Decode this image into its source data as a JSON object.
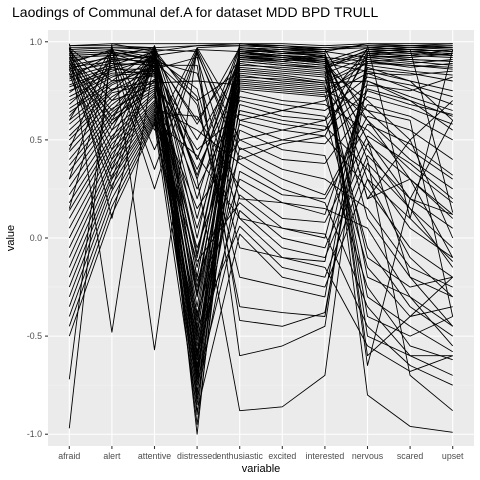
{
  "chart_data": {
    "type": "line",
    "title": "Laodings of Communal def.A for dataset MDD BPD TRULL",
    "xlabel": "variable",
    "ylabel": "value",
    "categories": [
      "afraid",
      "alert",
      "attentive",
      "distressed",
      "enthusiastic",
      "excited",
      "interested",
      "nervous",
      "scared",
      "upset"
    ],
    "ylim": [
      -1.06,
      1.06
    ],
    "yticks": [
      1.0,
      0.5,
      0.0,
      -0.5,
      -1.0
    ],
    "ytick_labels": [
      "1.0",
      "0.5",
      "0.0",
      "-0.5",
      "-1.0"
    ],
    "grid": true,
    "background": "#ebebeb",
    "line_color": "#000000",
    "series": [
      {
        "values": [
          0.99,
          0.1,
          0.98,
          -0.3,
          0.97,
          0.95,
          0.93,
          0.2,
          0.3,
          0.1
        ]
      },
      {
        "values": [
          -0.97,
          0.99,
          0.95,
          0.98,
          0.99,
          0.98,
          0.96,
          0.97,
          0.96,
          0.95
        ]
      },
      {
        "values": [
          0.98,
          0.98,
          -0.57,
          0.97,
          0.98,
          0.97,
          0.95,
          0.92,
          0.93,
          0.96
        ]
      },
      {
        "values": [
          -0.72,
          0.98,
          0.97,
          -1.0,
          0.99,
          0.97,
          0.96,
          0.98,
          0.97,
          0.98
        ]
      },
      {
        "values": [
          0.95,
          0.96,
          0.92,
          0.3,
          -0.88,
          -0.86,
          -0.7,
          0.94,
          0.95,
          0.93
        ]
      },
      {
        "values": [
          0.97,
          -0.48,
          0.93,
          0.96,
          0.95,
          0.93,
          0.92,
          -0.8,
          -0.96,
          -0.99
        ]
      },
      {
        "values": [
          0.96,
          0.97,
          0.96,
          0.95,
          -0.6,
          -0.55,
          -0.45,
          0.95,
          0.96,
          0.97
        ]
      },
      {
        "values": [
          0.94,
          0.95,
          0.9,
          -0.5,
          0.96,
          0.94,
          0.93,
          -0.5,
          -0.6,
          -0.6
        ]
      },
      {
        "values": [
          0.93,
          0.94,
          0.95,
          -0.7,
          0.97,
          0.96,
          0.94,
          0.4,
          -0.7,
          -0.88
        ]
      },
      {
        "values": [
          0.92,
          0.93,
          0.97,
          -0.4,
          0.95,
          0.93,
          0.9,
          0.97,
          0.96,
          0.13
        ]
      },
      {
        "values": [
          0.9,
          0.95,
          0.91,
          -0.6,
          0.94,
          0.92,
          0.91,
          0.5,
          0.2,
          0.12
        ]
      },
      {
        "values": [
          0.89,
          0.96,
          0.94,
          -0.2,
          0.93,
          0.92,
          0.89,
          0.95,
          0.94,
          0.93
        ]
      },
      {
        "values": [
          0.88,
          0.92,
          0.89,
          0.4,
          0.92,
          0.9,
          0.88,
          -0.2,
          -0.3,
          -0.55
        ]
      },
      {
        "values": [
          0.87,
          0.9,
          0.93,
          -0.8,
          0.96,
          0.95,
          0.92,
          0.9,
          0.91,
          0.9
        ]
      },
      {
        "values": [
          0.86,
          0.93,
          0.92,
          0.6,
          0.91,
          0.89,
          0.87,
          0.93,
          0.92,
          0.94
        ]
      },
      {
        "values": [
          0.85,
          0.89,
          0.88,
          -0.1,
          0.93,
          0.91,
          0.9,
          0.3,
          -0.1,
          -0.3
        ]
      },
      {
        "values": [
          0.83,
          0.91,
          0.9,
          -0.9,
          0.92,
          0.91,
          0.89,
          0.85,
          0.8,
          0.6
        ]
      },
      {
        "values": [
          0.82,
          0.88,
          0.95,
          0.2,
          0.9,
          0.88,
          0.86,
          0.96,
          0.95,
          0.96
        ]
      },
      {
        "values": [
          0.81,
          0.94,
          0.87,
          -0.45,
          0.94,
          0.93,
          0.91,
          0.1,
          -0.2,
          -0.45
        ]
      },
      {
        "values": [
          0.8,
          0.87,
          0.91,
          -0.65,
          0.89,
          0.86,
          0.84,
          0.92,
          0.9,
          0.88
        ]
      },
      {
        "values": [
          0.78,
          0.86,
          0.86,
          0.5,
          0.88,
          0.87,
          0.85,
          -0.4,
          -0.5,
          -0.4
        ]
      },
      {
        "values": [
          0.77,
          0.85,
          0.92,
          -0.75,
          0.95,
          0.92,
          0.9,
          0.88,
          0.85,
          0.83
        ]
      },
      {
        "values": [
          0.75,
          0.84,
          0.85,
          -0.35,
          0.87,
          0.85,
          0.83,
          0.6,
          0.4,
          0.25
        ]
      },
      {
        "values": [
          0.74,
          0.9,
          0.93,
          0.1,
          0.91,
          0.9,
          0.88,
          0.94,
          0.93,
          0.92
        ]
      },
      {
        "values": [
          0.72,
          0.83,
          0.84,
          -0.55,
          0.86,
          0.84,
          0.82,
          -0.1,
          -0.25,
          -0.2
        ]
      },
      {
        "values": [
          0.7,
          0.82,
          0.89,
          -0.85,
          0.9,
          0.88,
          0.87,
          0.7,
          0.5,
          0.0
        ]
      },
      {
        "values": [
          0.68,
          0.88,
          0.9,
          0.7,
          0.85,
          0.83,
          0.8,
          0.91,
          0.89,
          0.91
        ]
      },
      {
        "values": [
          0.66,
          0.8,
          0.83,
          -0.25,
          0.84,
          0.82,
          0.79,
          0.8,
          0.7,
          0.55
        ]
      },
      {
        "values": [
          0.64,
          0.79,
          0.87,
          -0.62,
          0.83,
          0.8,
          0.78,
          -0.3,
          -0.45,
          -0.58
        ]
      },
      {
        "values": [
          0.62,
          0.87,
          0.82,
          0.35,
          0.82,
          0.81,
          0.79,
          0.89,
          0.88,
          0.87
        ]
      },
      {
        "values": [
          0.6,
          0.78,
          0.88,
          -0.72,
          0.81,
          0.79,
          0.77,
          0.45,
          0.15,
          -0.15
        ]
      },
      {
        "values": [
          0.58,
          0.76,
          0.8,
          -0.15,
          0.8,
          0.78,
          0.76,
          0.86,
          0.84,
          0.8
        ]
      },
      {
        "values": [
          0.55,
          0.75,
          0.86,
          -0.95,
          0.79,
          0.77,
          0.75,
          0.65,
          0.45,
          0.3
        ]
      },
      {
        "values": [
          0.52,
          0.74,
          0.79,
          0.8,
          0.78,
          0.76,
          0.74,
          0.9,
          0.87,
          0.89
        ]
      },
      {
        "values": [
          0.5,
          0.72,
          0.85,
          -0.48,
          0.77,
          0.75,
          0.73,
          -0.05,
          -0.35,
          -0.5
        ]
      },
      {
        "values": [
          0.47,
          0.7,
          0.78,
          0.05,
          0.76,
          0.74,
          0.72,
          0.84,
          0.83,
          0.85
        ]
      },
      {
        "values": [
          0.44,
          0.68,
          0.84,
          -0.58,
          0.75,
          0.7,
          0.68,
          0.55,
          0.35,
          0.18
        ]
      },
      {
        "values": [
          0.4,
          0.66,
          0.77,
          -0.3,
          0.72,
          0.68,
          0.65,
          0.82,
          0.78,
          0.72
        ]
      },
      {
        "values": [
          0.37,
          0.64,
          0.81,
          0.25,
          0.7,
          0.65,
          0.62,
          -0.15,
          -0.4,
          -0.35
        ]
      },
      {
        "values": [
          0.34,
          0.62,
          0.76,
          -0.68,
          0.68,
          0.62,
          0.6,
          0.78,
          0.75,
          0.82
        ]
      },
      {
        "values": [
          0.3,
          0.6,
          0.75,
          -0.42,
          0.65,
          0.6,
          0.57,
          0.35,
          0.05,
          -0.1
        ]
      },
      {
        "values": [
          0.26,
          0.58,
          0.8,
          0.45,
          0.63,
          0.58,
          0.55,
          0.75,
          0.68,
          0.63
        ]
      },
      {
        "values": [
          0.22,
          0.55,
          0.74,
          -0.78,
          0.6,
          0.55,
          0.52,
          0.25,
          -0.05,
          -0.2
        ]
      },
      {
        "values": [
          0.18,
          0.52,
          0.73,
          -0.05,
          0.58,
          0.5,
          0.48,
          0.72,
          0.66,
          0.58
        ]
      },
      {
        "values": [
          0.14,
          0.5,
          0.72,
          -0.52,
          0.55,
          0.45,
          0.42,
          -0.25,
          -0.55,
          -0.62
        ]
      },
      {
        "values": [
          0.1,
          0.48,
          0.7,
          0.15,
          0.5,
          0.4,
          0.38,
          0.68,
          0.62,
          0.5
        ]
      },
      {
        "values": [
          0.05,
          0.45,
          0.69,
          -0.66,
          0.46,
          0.35,
          0.3,
          0.15,
          -0.15,
          -0.25
        ]
      },
      {
        "values": [
          0.0,
          0.43,
          0.68,
          -0.22,
          0.42,
          0.3,
          0.22,
          0.62,
          0.55,
          0.4
        ]
      },
      {
        "values": [
          -0.05,
          0.4,
          0.67,
          0.55,
          0.38,
          0.25,
          0.18,
          -0.35,
          -0.6,
          -0.7
        ]
      },
      {
        "values": [
          -0.1,
          0.38,
          0.66,
          -0.82,
          0.34,
          0.22,
          0.2,
          0.58,
          0.48,
          0.32
        ]
      },
      {
        "values": [
          -0.15,
          0.35,
          0.65,
          -0.38,
          0.3,
          0.18,
          0.15,
          0.05,
          -0.3,
          -0.45
        ]
      },
      {
        "values": [
          -0.2,
          0.32,
          0.64,
          0.62,
          0.26,
          0.1,
          0.08,
          0.52,
          0.38,
          0.2
        ]
      },
      {
        "values": [
          -0.25,
          0.3,
          0.63,
          -0.6,
          0.22,
          0.05,
          0.02,
          -0.45,
          -0.65,
          -0.75
        ]
      },
      {
        "values": [
          -0.3,
          0.27,
          0.62,
          -0.12,
          0.18,
          0.0,
          -0.05,
          0.48,
          0.3,
          0.12
        ]
      },
      {
        "values": [
          -0.35,
          0.24,
          0.61,
          -0.74,
          0.14,
          -0.05,
          -0.1,
          0.42,
          0.2,
          0.05
        ]
      },
      {
        "values": [
          -0.4,
          0.2,
          0.6,
          0.42,
          0.1,
          -0.1,
          -0.15,
          -0.55,
          -0.68,
          -0.6
        ]
      },
      {
        "values": [
          -0.45,
          0.16,
          0.59,
          -0.46,
          0.06,
          -0.15,
          -0.2,
          0.38,
          0.15,
          -0.05
        ]
      },
      {
        "values": [
          -0.5,
          0.12,
          0.58,
          -0.88,
          0.02,
          -0.2,
          -0.25,
          0.3,
          0.1,
          -0.12
        ]
      },
      {
        "values": [
          0.97,
          0.8,
          0.96,
          0.68,
          -0.2,
          -0.25,
          -0.3,
          0.93,
          0.91,
          0.9
        ]
      },
      {
        "values": [
          0.95,
          0.75,
          0.94,
          0.72,
          -0.35,
          -0.38,
          -0.4,
          0.9,
          0.88,
          0.86
        ]
      },
      {
        "values": [
          0.93,
          0.7,
          0.92,
          0.76,
          -0.05,
          -0.1,
          -0.12,
          0.87,
          0.8,
          0.75
        ]
      },
      {
        "values": [
          0.91,
          0.65,
          0.9,
          0.84,
          0.1,
          0.05,
          0.0,
          0.84,
          0.76,
          0.68
        ]
      },
      {
        "values": [
          0.89,
          0.62,
          0.88,
          0.88,
          -0.42,
          -0.45,
          -0.38,
          0.8,
          0.72,
          0.65
        ]
      },
      {
        "values": [
          0.87,
          0.58,
          0.86,
          0.92,
          0.2,
          0.18,
          0.12,
          0.76,
          0.7,
          0.62
        ]
      },
      {
        "values": [
          0.6,
          0.97,
          0.55,
          0.97,
          0.6,
          0.65,
          0.7,
          0.96,
          0.97,
          0.97
        ]
      },
      {
        "values": [
          0.45,
          0.96,
          0.45,
          0.96,
          0.5,
          0.55,
          0.6,
          0.97,
          0.98,
          0.98
        ]
      },
      {
        "values": [
          0.3,
          0.95,
          0.35,
          0.95,
          0.4,
          0.48,
          0.52,
          0.95,
          0.96,
          0.95
        ]
      },
      {
        "values": [
          0.15,
          0.92,
          0.25,
          0.94,
          0.45,
          0.5,
          0.55,
          0.93,
          0.95,
          0.94
        ]
      },
      {
        "values": [
          0.97,
          0.6,
          0.98,
          0.4,
          0.98,
          0.97,
          0.97,
          0.98,
          0.1,
          0.96
        ]
      },
      {
        "values": [
          0.96,
          0.55,
          0.97,
          0.3,
          0.97,
          0.96,
          0.96,
          0.6,
          0.3,
          -0.1
        ]
      },
      {
        "values": [
          0.94,
          0.5,
          0.96,
          0.0,
          0.96,
          0.94,
          0.95,
          0.99,
          0.98,
          0.99
        ]
      },
      {
        "values": [
          0.92,
          0.45,
          0.95,
          -0.2,
          0.95,
          0.95,
          0.94,
          0.2,
          0.5,
          0.7
        ]
      },
      {
        "values": [
          0.9,
          0.4,
          0.94,
          -0.28,
          0.94,
          0.93,
          0.92,
          0.5,
          -0.2,
          -0.3
        ]
      },
      {
        "values": [
          0.88,
          0.35,
          0.93,
          0.58,
          0.97,
          0.96,
          0.95,
          -0.6,
          -0.4,
          -0.2
        ]
      },
      {
        "values": [
          0.86,
          0.3,
          0.92,
          -0.08,
          0.93,
          0.9,
          0.93,
          -0.65,
          0.2,
          0.6
        ]
      },
      {
        "values": [
          0.84,
          0.25,
          0.91,
          0.32,
          0.92,
          0.91,
          0.9,
          0.65,
          0.6,
          -0.4
        ]
      },
      {
        "values": [
          0.98,
          0.99,
          0.99,
          0.99,
          0.99,
          0.99,
          0.98,
          0.99,
          0.99,
          0.99
        ]
      },
      {
        "values": [
          0.97,
          0.97,
          0.97,
          0.98,
          0.98,
          0.98,
          0.97,
          0.98,
          0.98,
          0.97
        ]
      }
    ]
  }
}
